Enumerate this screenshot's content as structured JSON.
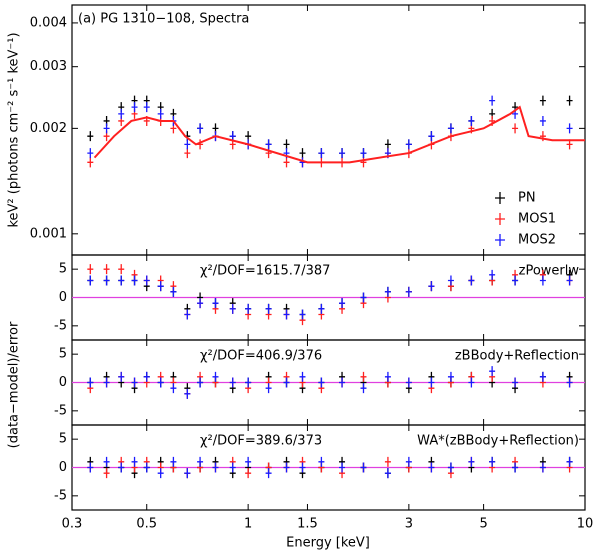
{
  "chart_data": [
    {
      "type": "scatter",
      "title": "(a) PG 1310−108, Spectra",
      "ylabel": "keV² (photons cm⁻² s⁻¹ keV⁻¹)",
      "xlog": true,
      "ylog": true,
      "xlim": [
        0.3,
        10
      ],
      "ylim": [
        0.00087,
        0.0045
      ],
      "yticks": [
        0.001,
        0.002,
        0.003,
        0.004
      ],
      "legend": "lower right",
      "x": [
        0.34,
        0.38,
        0.42,
        0.46,
        0.5,
        0.55,
        0.6,
        0.66,
        0.72,
        0.8,
        0.9,
        1.0,
        1.15,
        1.3,
        1.45,
        1.65,
        1.9,
        2.2,
        2.6,
        3.0,
        3.5,
        4.0,
        4.6,
        5.3,
        6.2,
        7.5,
        9.0
      ],
      "series": [
        {
          "name": "PN",
          "color": "#000000",
          "values": [
            0.0019,
            0.0021,
            0.0023,
            0.0024,
            0.0024,
            0.0023,
            0.0022,
            0.0019,
            0.002,
            0.002,
            0.0019,
            0.0019,
            0.0018,
            0.0018,
            0.0017,
            0.0017,
            0.0017,
            0.0017,
            0.0018,
            0.0018,
            0.0019,
            0.002,
            0.0021,
            0.0022,
            0.0023,
            0.0024,
            0.0024
          ]
        },
        {
          "name": "MOS1",
          "color": "#ff2020",
          "values": [
            0.0016,
            0.0019,
            0.0021,
            0.0022,
            0.0021,
            0.0021,
            0.002,
            0.0017,
            0.0018,
            0.0019,
            0.0018,
            0.0018,
            0.0017,
            0.0016,
            0.0016,
            0.0016,
            0.0016,
            0.0016,
            0.0017,
            0.0017,
            0.0018,
            0.0019,
            0.002,
            0.0021,
            0.002,
            0.0019,
            0.0018
          ]
        },
        {
          "name": "MOS2",
          "color": "#1a1aff",
          "values": [
            0.0017,
            0.002,
            0.0022,
            0.0023,
            0.0023,
            0.0022,
            0.0021,
            0.0018,
            0.002,
            0.0019,
            0.0019,
            0.0018,
            0.0018,
            0.0017,
            0.0016,
            0.0017,
            0.0017,
            0.0017,
            0.0017,
            0.0018,
            0.0019,
            0.002,
            0.0021,
            0.0024,
            0.0022,
            0.0021,
            0.002
          ]
        }
      ],
      "model": {
        "color": "#ff2020",
        "x": [
          0.35,
          0.4,
          0.45,
          0.5,
          0.55,
          0.6,
          0.65,
          0.7,
          0.8,
          1.0,
          1.5,
          2.0,
          3.0,
          4.0,
          5.0,
          6.0,
          6.4,
          6.8,
          8.0,
          10.0
        ],
        "values": [
          0.00165,
          0.0019,
          0.0021,
          0.00215,
          0.0021,
          0.0021,
          0.0019,
          0.0018,
          0.0019,
          0.0018,
          0.0016,
          0.0016,
          0.0017,
          0.0019,
          0.002,
          0.0022,
          0.0023,
          0.0019,
          0.00185,
          0.00185
        ]
      }
    },
    {
      "type": "scatter",
      "ylabel": "(data−model)/error",
      "annotation": "χ²/DOF=1615.7/387",
      "model_name": "zPowerlw",
      "xlog": true,
      "xlim": [
        0.3,
        10
      ],
      "ylim": [
        -7.5,
        7.5
      ],
      "yticks": [
        -5,
        0,
        5
      ],
      "hline": 0,
      "hline_color": "#e040e0",
      "x": [
        0.34,
        0.38,
        0.42,
        0.46,
        0.5,
        0.55,
        0.6,
        0.66,
        0.72,
        0.8,
        0.9,
        1.0,
        1.15,
        1.3,
        1.45,
        1.65,
        1.9,
        2.2,
        2.6,
        3.0,
        3.5,
        4.0,
        4.6,
        5.3,
        6.2,
        7.5,
        9.0
      ],
      "series": [
        {
          "name": "PN",
          "color": "#000000",
          "values": [
            3,
            3,
            3,
            3,
            2,
            2,
            1,
            -2,
            0,
            -1,
            -1,
            -2,
            -2,
            -2,
            -3,
            -2,
            -1,
            0,
            1,
            1,
            2,
            2,
            3,
            3,
            3,
            4,
            4
          ]
        },
        {
          "name": "MOS1",
          "color": "#ff2020",
          "values": [
            5,
            5,
            5,
            4,
            3,
            3,
            2,
            -3,
            -1,
            -2,
            -2,
            -3,
            -3,
            -3,
            -4,
            -3,
            -2,
            -1,
            0,
            1,
            2,
            2,
            3,
            3,
            4,
            4,
            3
          ]
        },
        {
          "name": "MOS2",
          "color": "#1a1aff",
          "values": [
            3,
            3,
            3,
            3,
            3,
            2,
            1,
            -3,
            -1,
            -1,
            -2,
            -2,
            -2,
            -3,
            -3,
            -2,
            -1,
            0,
            1,
            1,
            2,
            3,
            3,
            4,
            3,
            3,
            3
          ]
        }
      ]
    },
    {
      "type": "scatter",
      "annotation": "χ²/DOF=406.9/376",
      "model_name": "zBBody+Reflection",
      "xlog": true,
      "xlim": [
        0.3,
        10
      ],
      "ylim": [
        -7.5,
        7.5
      ],
      "yticks": [
        -5,
        0,
        5
      ],
      "hline": 0,
      "hline_color": "#e040e0",
      "x": [
        0.34,
        0.38,
        0.42,
        0.46,
        0.5,
        0.55,
        0.6,
        0.66,
        0.72,
        0.8,
        0.9,
        1.0,
        1.15,
        1.3,
        1.45,
        1.65,
        1.9,
        2.2,
        2.6,
        3.0,
        3.5,
        4.0,
        4.6,
        5.3,
        6.2,
        7.5,
        9.0
      ],
      "series": [
        {
          "name": "PN",
          "color": "#000000",
          "values": [
            0,
            1,
            0,
            -1,
            1,
            0,
            1,
            -1,
            0,
            0,
            -1,
            0,
            1,
            0,
            -1,
            0,
            1,
            0,
            0,
            -1,
            1,
            0,
            1,
            0,
            -1,
            1,
            1
          ]
        },
        {
          "name": "MOS1",
          "color": "#ff2020",
          "values": [
            -1,
            0,
            1,
            0,
            0,
            1,
            0,
            -2,
            1,
            0,
            0,
            -1,
            0,
            1,
            0,
            -1,
            0,
            1,
            0,
            0,
            -1,
            0,
            1,
            1,
            0,
            0,
            0
          ]
        },
        {
          "name": "MOS2",
          "color": "#1a1aff",
          "values": [
            0,
            0,
            1,
            0,
            1,
            0,
            -1,
            -2,
            0,
            1,
            0,
            0,
            -1,
            0,
            1,
            0,
            0,
            -1,
            1,
            0,
            0,
            1,
            0,
            2,
            0,
            1,
            0
          ]
        }
      ]
    },
    {
      "type": "scatter",
      "annotation": "χ²/DOF=389.6/373",
      "model_name": "WA*(zBBody+Reflection)",
      "xlabel": "Energy [keV]",
      "xlog": true,
      "xlim": [
        0.3,
        10
      ],
      "ylim": [
        -7.5,
        7.5
      ],
      "yticks": [
        -5,
        0,
        5
      ],
      "hline": 0,
      "hline_color": "#e040e0",
      "xticks": [
        0.3,
        0.5,
        1,
        1.5,
        3,
        5,
        10
      ],
      "x": [
        0.34,
        0.38,
        0.42,
        0.46,
        0.5,
        0.55,
        0.6,
        0.66,
        0.72,
        0.8,
        0.9,
        1.0,
        1.15,
        1.3,
        1.45,
        1.65,
        1.9,
        2.2,
        2.6,
        3.0,
        3.5,
        4.0,
        4.6,
        5.3,
        6.2,
        7.5,
        9.0
      ],
      "series": [
        {
          "name": "PN",
          "color": "#000000",
          "values": [
            1,
            0,
            0,
            -1,
            0,
            1,
            0,
            -1,
            0,
            1,
            -1,
            0,
            0,
            1,
            -1,
            0,
            1,
            0,
            -1,
            0,
            1,
            0,
            0,
            1,
            0,
            1,
            1
          ]
        },
        {
          "name": "MOS1",
          "color": "#ff2020",
          "values": [
            0,
            -1,
            1,
            0,
            1,
            0,
            0,
            -1,
            0,
            0,
            1,
            -1,
            0,
            0,
            1,
            0,
            -1,
            0,
            1,
            0,
            0,
            -1,
            1,
            0,
            1,
            0,
            0
          ]
        },
        {
          "name": "MOS2",
          "color": "#1a1aff",
          "values": [
            0,
            1,
            0,
            1,
            0,
            -1,
            1,
            -1,
            1,
            0,
            0,
            1,
            -1,
            0,
            0,
            1,
            0,
            0,
            -1,
            1,
            0,
            0,
            1,
            1,
            0,
            0,
            1
          ]
        }
      ]
    }
  ]
}
